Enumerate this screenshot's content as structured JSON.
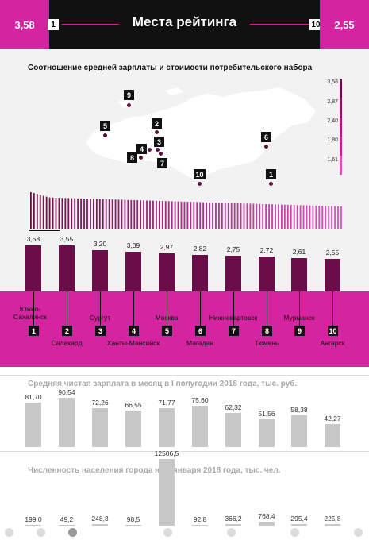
{
  "header": {
    "left_value": "3,58",
    "left_rank": "1",
    "title": "Места рейтинга",
    "right_rank": "10",
    "right_value": "2,55"
  },
  "map": {
    "title": "Соотношение средней зарплаты и стоимости потребительского набора",
    "scale_labels": [
      "3,58",
      "2,87",
      "2,40",
      "1,80",
      "1,61"
    ],
    "markers": [
      "9",
      "5",
      "2",
      "3",
      "4",
      "8",
      "7",
      "6",
      "10",
      "1"
    ]
  },
  "chart_data": [
    {
      "type": "bar",
      "title": "",
      "categories": [
        "Южно-Сахалинск",
        "Салехард",
        "Сургут",
        "Ханты-Мансийск",
        "Москва",
        "Магадан",
        "Нижневартовск",
        "Тюмень",
        "Мурманск",
        "Ангарск"
      ],
      "value_labels": [
        "3,58",
        "3,55",
        "3,20",
        "3,09",
        "2,97",
        "2,82",
        "2,75",
        "2,72",
        "2,61",
        "2,55"
      ],
      "values": [
        3.58,
        3.55,
        3.2,
        3.09,
        2.97,
        2.82,
        2.75,
        2.72,
        2.61,
        2.55
      ],
      "color": "#6b0d48"
    },
    {
      "type": "bar",
      "title": "Средняя чистая зарплата в месяц в I полугодии 2018 года, тыс. руб.",
      "categories": [
        "Южно-Сахалинск",
        "Салехард",
        "Сургут",
        "Ханты-Мансийск",
        "Москва",
        "Магадан",
        "Нижневартовск",
        "Тюмень",
        "Мурманск",
        "Ангарск"
      ],
      "value_labels": [
        "81,70",
        "90,54",
        "72,26",
        "66,55",
        "71,77",
        "75,60",
        "62,32",
        "51,56",
        "58,38",
        "42,27"
      ],
      "values": [
        81.7,
        90.54,
        72.26,
        66.55,
        71.77,
        75.6,
        62.32,
        51.56,
        58.38,
        42.27
      ],
      "color": "#c8c8c8"
    },
    {
      "type": "bar",
      "title": "Численность населения города на 1 января 2018 года, тыс. чел.",
      "categories": [
        "Южно-Сахалинск",
        "Салехард",
        "Сургут",
        "Ханты-Мансийск",
        "Москва",
        "Магадан",
        "Нижневартовск",
        "Тюмень",
        "Мурманск",
        "Ангарск"
      ],
      "value_labels": [
        "199,0",
        "49,2",
        "248,3",
        "98,5",
        "12506,5",
        "92,8",
        "366,2",
        "768,4",
        "295,4",
        "225,8"
      ],
      "values": [
        199.0,
        49.2,
        248.3,
        98.5,
        12506.5,
        92.8,
        366.2,
        768.4,
        295.4,
        225.8
      ],
      "color": "#c8c8c8"
    }
  ],
  "cities": [
    {
      "rank": "1",
      "name": "Южно-Сахалинск"
    },
    {
      "rank": "2",
      "name": "Салехард"
    },
    {
      "rank": "3",
      "name": "Сургут"
    },
    {
      "rank": "4",
      "name": "Ханты-Мансийск"
    },
    {
      "rank": "5",
      "name": "Москва"
    },
    {
      "rank": "6",
      "name": "Магадан"
    },
    {
      "rank": "7",
      "name": "Нижневартовск"
    },
    {
      "rank": "8",
      "name": "Тюмень"
    },
    {
      "rank": "9",
      "name": "Мурманск"
    },
    {
      "rank": "10",
      "name": "Ангарск"
    }
  ],
  "pagination": {
    "count": 7,
    "active": 2
  },
  "colors": {
    "accent": "#d4249f",
    "dark": "#6b0d48",
    "header_bg": "#111111",
    "grey": "#c8c8c8"
  }
}
